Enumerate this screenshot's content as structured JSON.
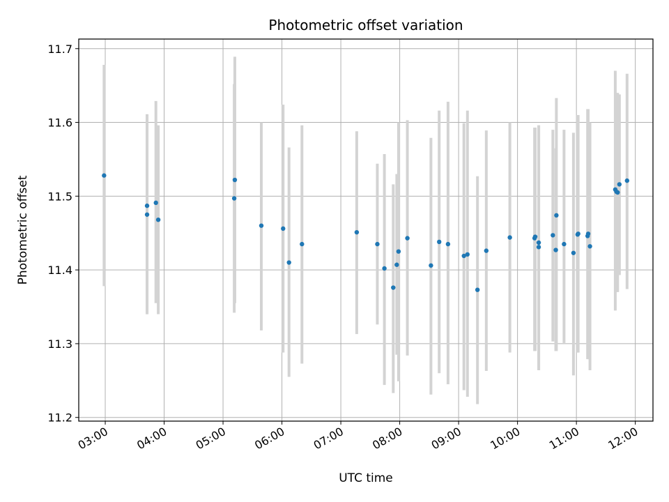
{
  "chart_data": {
    "type": "scatter",
    "title": "Photometric offset variation",
    "xlabel": "UTC time",
    "ylabel": "Photometric offset",
    "x_unit": "hours UTC",
    "xlim": [
      2.55,
      12.3
    ],
    "ylim": [
      11.195,
      11.713
    ],
    "x_ticks": [
      3,
      4,
      5,
      6,
      7,
      8,
      9,
      10,
      11,
      12
    ],
    "x_tick_labels": [
      "03:00",
      "04:00",
      "05:00",
      "06:00",
      "07:00",
      "08:00",
      "09:00",
      "10:00",
      "11:00",
      "12:00"
    ],
    "y_ticks": [
      11.2,
      11.3,
      11.4,
      11.5,
      11.6,
      11.7
    ],
    "y_tick_labels": [
      "11.2",
      "11.3",
      "11.4",
      "11.5",
      "11.6",
      "11.7"
    ],
    "grid": true,
    "legend": "none",
    "colors": {
      "point": "#1f77b4",
      "errorbar": "#d3d3d3",
      "grid": "#b0b0b0"
    },
    "series": [
      {
        "x": [
          2.98,
          3.71,
          3.71,
          3.86,
          3.9,
          5.19,
          5.2,
          5.65,
          6.02,
          6.12,
          6.34,
          7.27,
          7.62,
          7.74,
          7.89,
          7.95,
          7.98,
          8.13,
          8.53,
          8.67,
          8.82,
          9.09,
          9.15,
          9.32,
          9.47,
          9.87,
          10.29,
          10.3,
          10.36,
          10.36,
          10.6,
          10.65,
          10.66,
          10.79,
          10.95,
          11.02,
          11.03,
          11.19,
          11.2,
          11.23,
          11.66,
          11.68,
          11.7,
          11.73,
          11.86
        ],
        "y": [
          11.528,
          11.487,
          11.475,
          11.491,
          11.468,
          11.497,
          11.522,
          11.46,
          11.456,
          11.41,
          11.435,
          11.451,
          11.435,
          11.402,
          11.376,
          11.407,
          11.425,
          11.443,
          11.406,
          11.438,
          11.435,
          11.419,
          11.421,
          11.373,
          11.426,
          11.444,
          11.443,
          11.445,
          11.437,
          11.431,
          11.447,
          11.427,
          11.474,
          11.435,
          11.423,
          11.448,
          11.449,
          11.446,
          11.449,
          11.432,
          11.509,
          11.506,
          11.505,
          11.516,
          11.521
        ],
        "y_low": [
          11.378,
          11.34,
          11.34,
          11.355,
          11.34,
          11.342,
          11.355,
          11.318,
          11.288,
          11.255,
          11.273,
          11.313,
          11.326,
          11.244,
          11.233,
          11.285,
          11.249,
          11.284,
          11.231,
          11.26,
          11.245,
          11.237,
          11.228,
          11.218,
          11.263,
          11.288,
          11.29,
          11.29,
          11.264,
          11.264,
          11.303,
          11.29,
          11.29,
          11.301,
          11.257,
          11.288,
          11.288,
          11.279,
          11.279,
          11.264,
          11.345,
          11.37,
          11.37,
          11.393,
          11.374
        ],
        "y_high": [
          11.678,
          11.611,
          11.611,
          11.629,
          11.596,
          11.652,
          11.689,
          11.6,
          11.624,
          11.566,
          11.596,
          11.588,
          11.544,
          11.557,
          11.516,
          11.53,
          11.6,
          11.603,
          11.579,
          11.616,
          11.628,
          11.599,
          11.616,
          11.527,
          11.589,
          11.6,
          11.593,
          11.593,
          11.596,
          11.596,
          11.59,
          11.565,
          11.633,
          11.59,
          11.586,
          11.61,
          11.61,
          11.618,
          11.618,
          11.6,
          11.67,
          11.64,
          11.64,
          11.638,
          11.666
        ]
      }
    ]
  }
}
